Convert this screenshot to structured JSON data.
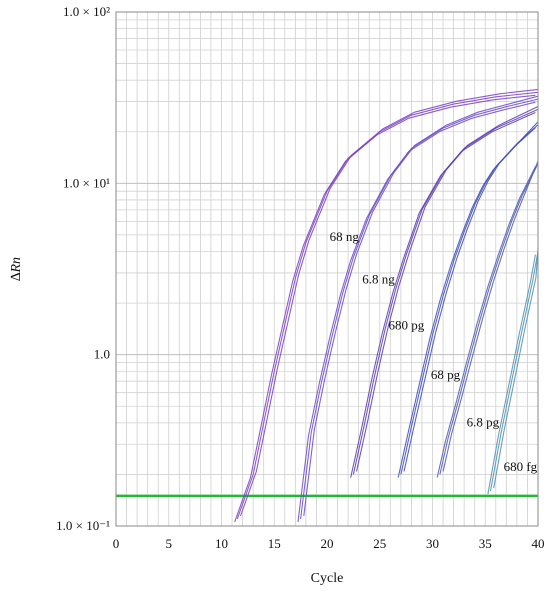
{
  "chart_data": {
    "type": "line",
    "xlabel": "Cycle",
    "ylabel": "∆Rn",
    "xlim": [
      0,
      40
    ],
    "ylim": [
      0.1,
      100
    ],
    "yscale": "log",
    "grid": true,
    "x_ticks": [
      0,
      5,
      10,
      15,
      20,
      25,
      30,
      35,
      40
    ],
    "y_ticks": [
      {
        "value": 100,
        "label": "1.0 × 10²"
      },
      {
        "value": 10,
        "label": "1.0 × 10¹"
      },
      {
        "value": 1,
        "label": "1.0"
      },
      {
        "value": 0.1,
        "label": "1.0 × 10⁻¹"
      }
    ],
    "threshold": {
      "value": 0.15,
      "color": "#22b833"
    },
    "series": [
      {
        "name": "68 ng",
        "color": "#7a3fc4",
        "x": [
          11.5,
          13,
          14,
          15,
          16,
          17,
          18,
          20,
          22,
          25,
          28,
          32,
          36,
          40
        ],
        "y": [
          0.11,
          0.2,
          0.4,
          0.8,
          1.5,
          2.8,
          4.5,
          9,
          14,
          20,
          25,
          29,
          32,
          34
        ]
      },
      {
        "name": "6.8 ng",
        "color": "#6b49c9",
        "x": [
          17.5,
          18.5,
          19.5,
          20.5,
          21.5,
          22.5,
          24,
          26,
          28,
          31,
          34,
          37,
          40
        ],
        "y": [
          0.11,
          0.35,
          0.7,
          1.3,
          2.3,
          3.7,
          6.5,
          11,
          16,
          21,
          25,
          28,
          31
        ]
      },
      {
        "name": "680 pg",
        "color": "#5b3cb0",
        "x": [
          22.5,
          23.5,
          24.5,
          25.5,
          26.5,
          27.5,
          29,
          31,
          33,
          36,
          40
        ],
        "y": [
          0.2,
          0.38,
          0.75,
          1.4,
          2.4,
          3.8,
          7,
          11.5,
          16,
          21,
          27
        ]
      },
      {
        "name": "68 pg",
        "color": "#3d4bb8",
        "x": [
          27,
          28,
          29,
          30,
          31,
          32,
          33,
          34,
          35,
          36,
          38,
          40
        ],
        "y": [
          0.2,
          0.38,
          0.7,
          1.3,
          2.2,
          3.5,
          5.2,
          7.5,
          10,
          12.5,
          17,
          22
        ]
      },
      {
        "name": "6.8 pg",
        "color": "#4f5bb0",
        "x": [
          30.7,
          31.5,
          32.5,
          33.5,
          34.5,
          35.5,
          36.5,
          37.5,
          38.5,
          40
        ],
        "y": [
          0.2,
          0.33,
          0.55,
          0.95,
          1.6,
          2.6,
          4,
          6,
          8.5,
          13
        ]
      },
      {
        "name": "680 fg",
        "color": "#4d8fb0",
        "x": [
          35.5,
          36.5,
          37.5,
          38.5,
          39.5,
          40
        ],
        "y": [
          0.16,
          0.35,
          0.7,
          1.4,
          2.7,
          4
        ]
      }
    ]
  }
}
